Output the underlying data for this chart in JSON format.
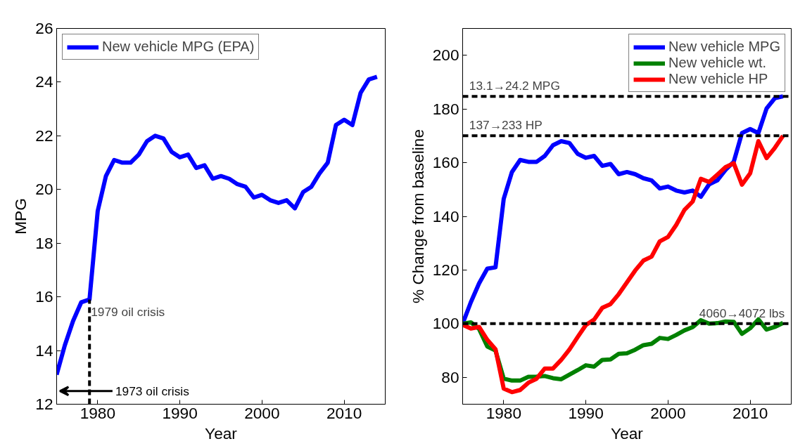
{
  "chart_data": [
    {
      "type": "line",
      "xlabel": "Year",
      "ylabel": "MPG",
      "xlim": [
        1975,
        2015
      ],
      "ylim": [
        12,
        26
      ],
      "xticks": [
        1980,
        1990,
        2000,
        2010
      ],
      "yticks": [
        12,
        14,
        16,
        18,
        20,
        22,
        24,
        26
      ],
      "grid": false,
      "legend": "top left",
      "x": [
        1975,
        1976,
        1977,
        1978,
        1979,
        1980,
        1981,
        1982,
        1983,
        1984,
        1985,
        1986,
        1987,
        1988,
        1989,
        1990,
        1991,
        1992,
        1993,
        1994,
        1995,
        1996,
        1997,
        1998,
        1999,
        2000,
        2001,
        2002,
        2003,
        2004,
        2005,
        2006,
        2007,
        2008,
        2009,
        2010,
        2011,
        2012,
        2013,
        2014
      ],
      "series": [
        {
          "name": "New vehicle MPG (EPA)",
          "color": "#0000ff",
          "values": [
            13.1,
            14.2,
            15.1,
            15.8,
            15.9,
            19.2,
            20.5,
            21.1,
            21.0,
            21.0,
            21.3,
            21.8,
            22.0,
            21.9,
            21.4,
            21.2,
            21.3,
            20.8,
            20.9,
            20.4,
            20.5,
            20.4,
            20.2,
            20.1,
            19.7,
            19.8,
            19.6,
            19.5,
            19.6,
            19.3,
            19.9,
            20.1,
            20.6,
            21.0,
            22.4,
            22.6,
            22.4,
            23.6,
            24.1,
            24.2
          ]
        }
      ],
      "annotations": [
        {
          "text": "1979 oil crisis",
          "x": 1979,
          "y": 15.9
        },
        "1973 oil crisis"
      ]
    },
    {
      "type": "line",
      "xlabel": "Year",
      "ylabel": "% Change from baseline",
      "xlim": [
        1975,
        2015
      ],
      "ylim": [
        70,
        210
      ],
      "xticks": [
        1980,
        1990,
        2000,
        2010
      ],
      "yticks": [
        80,
        100,
        120,
        140,
        160,
        180,
        200
      ],
      "grid": false,
      "legend": "top right",
      "x": [
        1975,
        1976,
        1977,
        1978,
        1979,
        1980,
        1981,
        1982,
        1983,
        1984,
        1985,
        1986,
        1987,
        1988,
        1989,
        1990,
        1991,
        1992,
        1993,
        1994,
        1995,
        1996,
        1997,
        1998,
        1999,
        2000,
        2001,
        2002,
        2003,
        2004,
        2005,
        2006,
        2007,
        2008,
        2009,
        2010,
        2011,
        2012,
        2013,
        2014
      ],
      "series": [
        {
          "name": "New vehicle MPG",
          "color": "#0000ff",
          "values": [
            100,
            108,
            115,
            120.5,
            121,
            146.5,
            156.5,
            161,
            160.3,
            160.3,
            162.5,
            166.5,
            168,
            167.3,
            163.3,
            161.8,
            162.5,
            158.8,
            159.5,
            155.7,
            156.5,
            155.7,
            154.2,
            153.4,
            150.4,
            151.1,
            149.6,
            148.9,
            149.6,
            147.3,
            151.9,
            153.4,
            157.3,
            160.3,
            171,
            172.5,
            171,
            180.2,
            184,
            184.7
          ]
        },
        {
          "name": "New vehicle wt.",
          "color": "#008000",
          "values": [
            100,
            100.5,
            98,
            91.5,
            90,
            79.5,
            78.8,
            78.8,
            80.2,
            80.3,
            80.5,
            79.7,
            79.3,
            81,
            82.7,
            84.5,
            84,
            86.5,
            86.7,
            88.8,
            89,
            90.3,
            92,
            92.5,
            94.7,
            94.3,
            95.8,
            97.5,
            98.7,
            101.3,
            100,
            100.2,
            100.8,
            100.7,
            96.2,
            98.3,
            101.6,
            97.8,
            98.8,
            100.3
          ]
        },
        {
          "name": "New vehicle HP",
          "color": "#ff0000",
          "values": [
            99.6,
            98.2,
            98.8,
            94,
            90.5,
            75.8,
            74.5,
            75.3,
            78,
            79.5,
            83.3,
            83.3,
            86.5,
            90.4,
            95,
            99.5,
            101.5,
            105.9,
            107.3,
            111,
            115.4,
            119.8,
            123.5,
            125,
            130.7,
            132.3,
            136.8,
            142.4,
            145.5,
            154,
            152.8,
            155.5,
            158.3,
            159.8,
            151.8,
            156,
            168,
            161.7,
            165.5,
            170
          ]
        }
      ],
      "ref_lines": [
        {
          "axis": "y",
          "value": 184.7,
          "label": "13.1→24.2 MPG",
          "line_style": "dashed"
        },
        {
          "axis": "y",
          "value": 170,
          "label": "137→233 HP",
          "line_style": "dashed"
        },
        {
          "axis": "y",
          "value": 100,
          "label": "4060→4072 lbs",
          "line_style": "dashed"
        }
      ]
    }
  ]
}
